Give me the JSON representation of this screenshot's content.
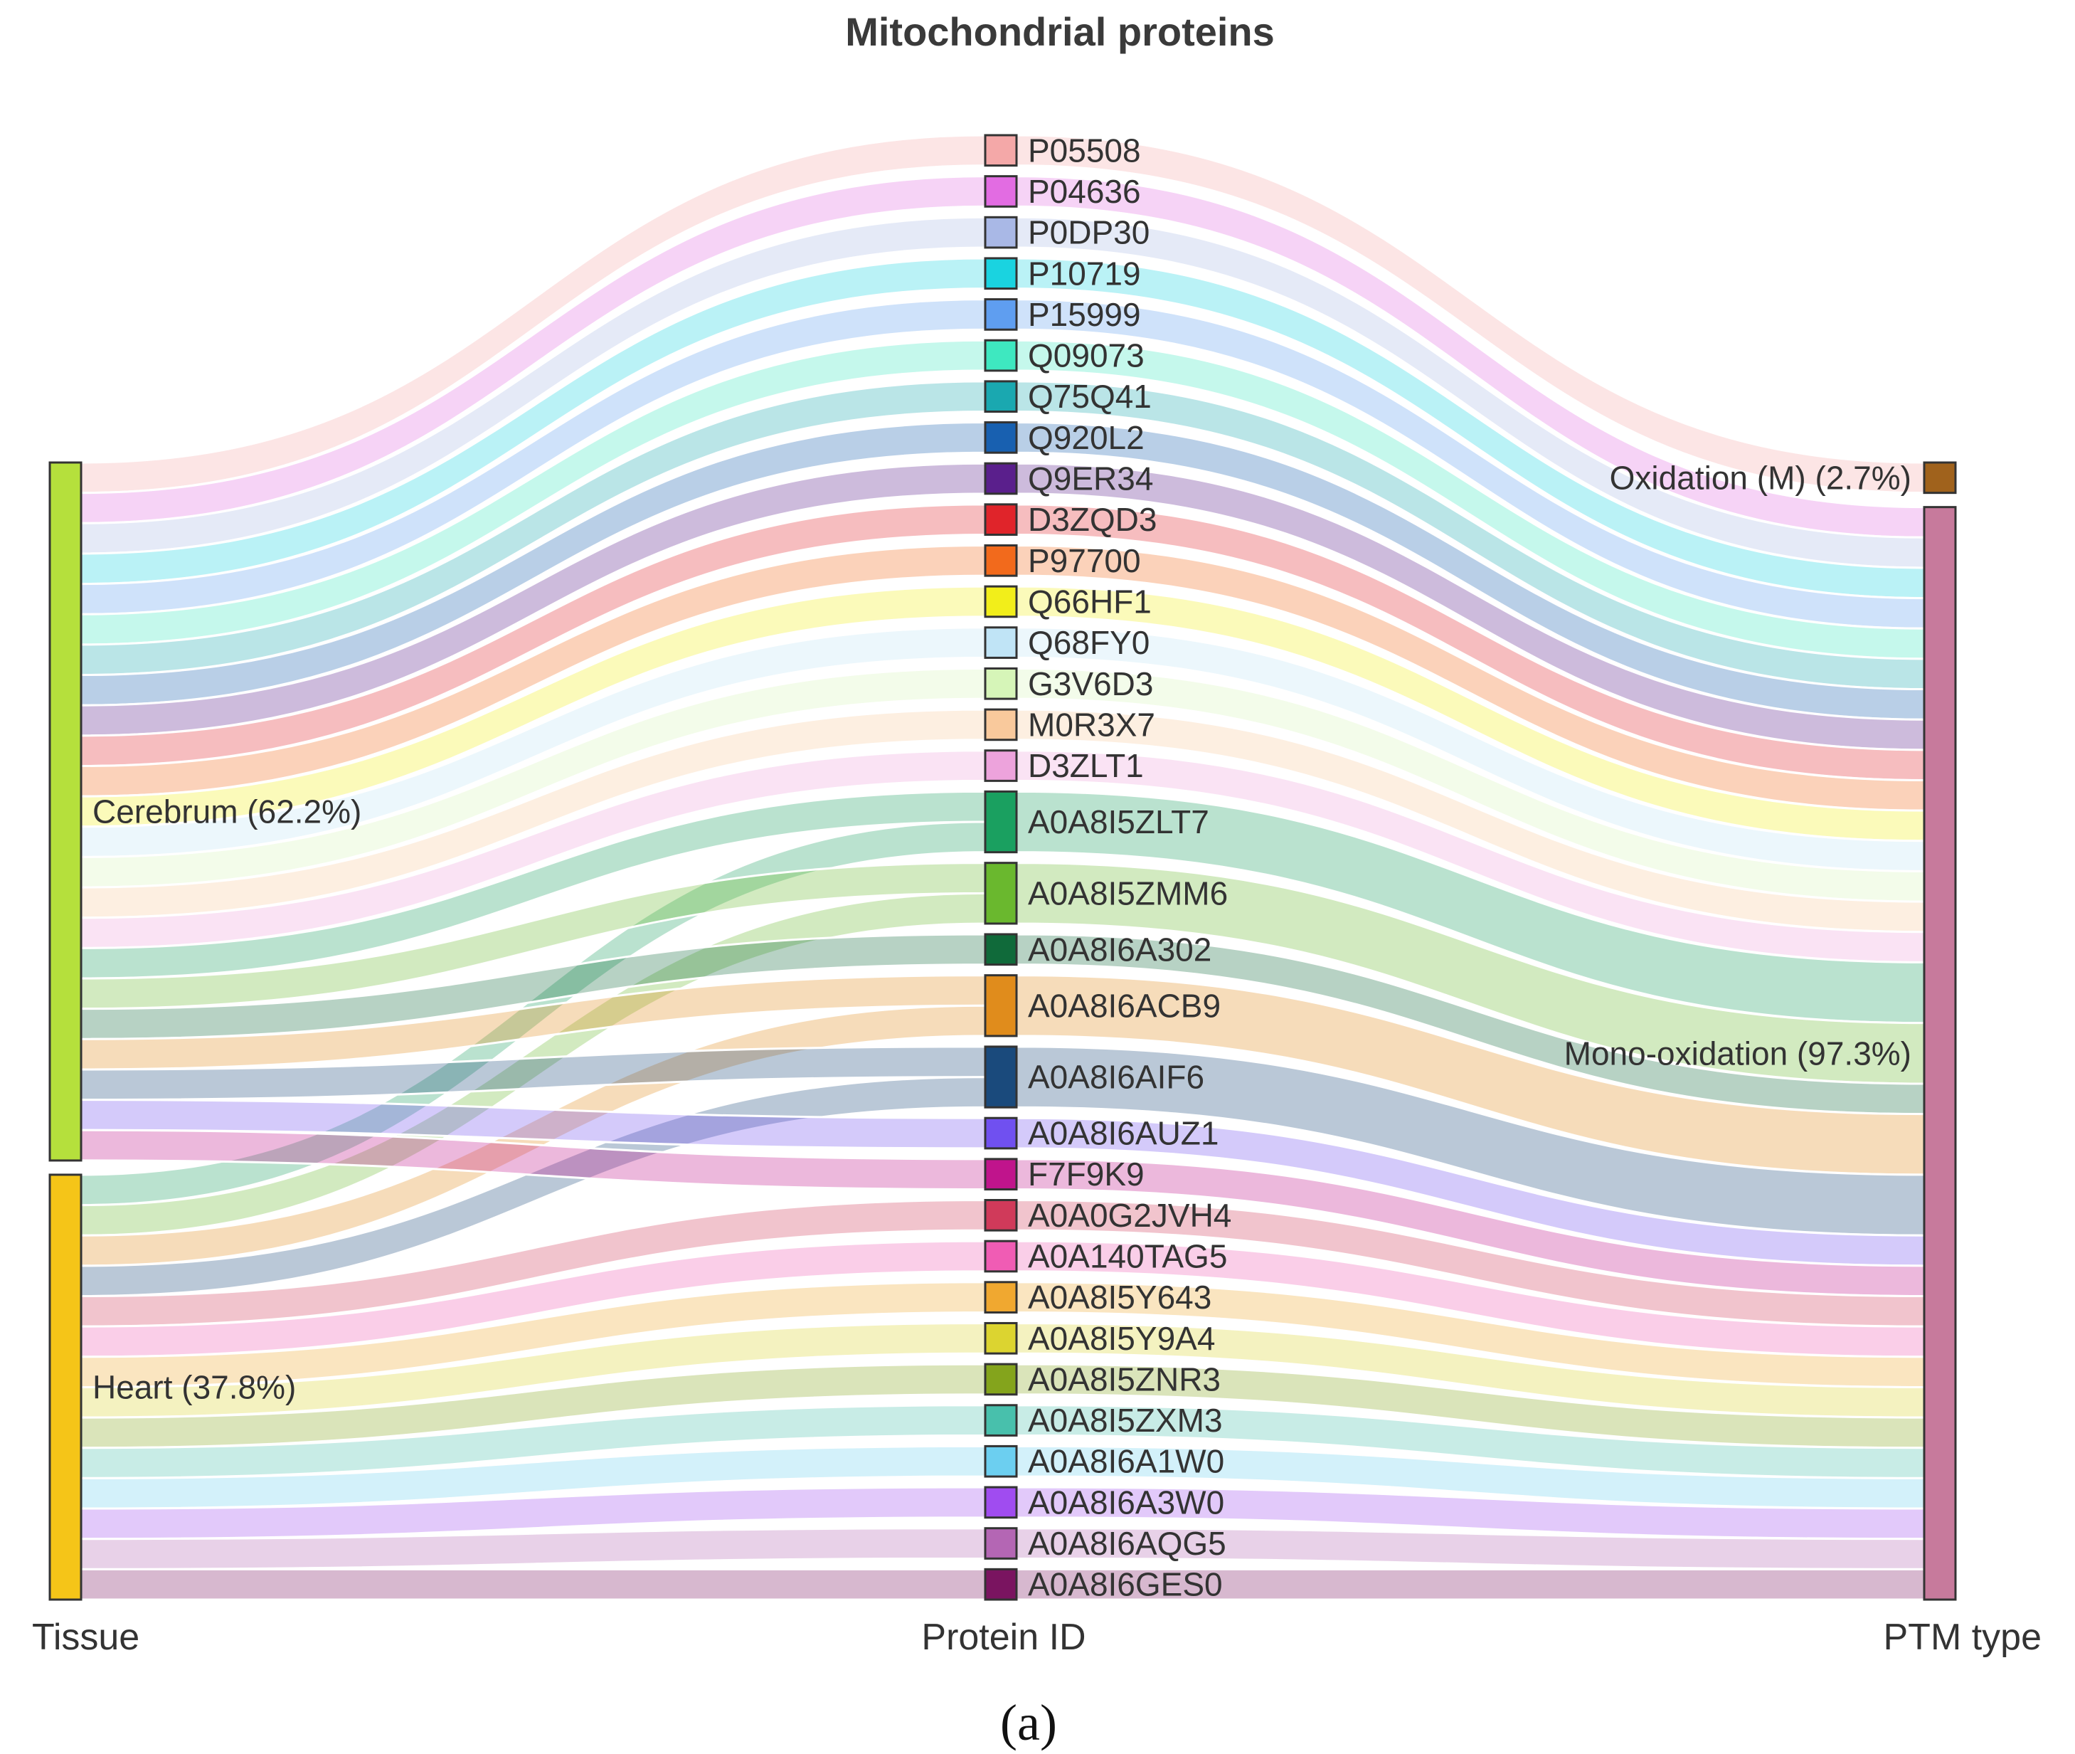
{
  "chart_data": {
    "type": "sankey",
    "title": "Mitochondrial proteins",
    "caption": "(a)",
    "columns": [
      "Tissue",
      "Protein ID",
      "PTM type"
    ],
    "tissues": [
      {
        "label": "Cerebrum (62.2%)",
        "name": "Cerebrum",
        "percent": 62.2,
        "color": "#b5e03c"
      },
      {
        "label": "Heart (37.8%)",
        "name": "Heart",
        "percent": 37.8,
        "color": "#f5c518"
      }
    ],
    "ptm_types": [
      {
        "label": "Oxidation (M) (2.7%)",
        "name": "Oxidation (M)",
        "percent": 2.7,
        "color": "#a0621c"
      },
      {
        "label": "Mono-oxidation (97.3%)",
        "name": "Mono-oxidation",
        "percent": 97.3,
        "color": "#c77a9c"
      }
    ],
    "proteins": [
      {
        "id": "P05508",
        "value": 1,
        "color": "#f4a8a8",
        "tissues": {
          "Cerebrum": 1
        },
        "ptm": {
          "Oxidation (M)": 1
        }
      },
      {
        "id": "P04636",
        "value": 1,
        "color": "#e26ce2",
        "tissues": {
          "Cerebrum": 1
        },
        "ptm": {
          "Mono-oxidation": 1
        }
      },
      {
        "id": "P0DP30",
        "value": 1,
        "color": "#a9b8e6",
        "tissues": {
          "Cerebrum": 1
        },
        "ptm": {
          "Mono-oxidation": 1
        }
      },
      {
        "id": "P10719",
        "value": 1,
        "color": "#1ad3e0",
        "tissues": {
          "Cerebrum": 1
        },
        "ptm": {
          "Mono-oxidation": 1
        }
      },
      {
        "id": "P15999",
        "value": 1,
        "color": "#5f9ef0",
        "tissues": {
          "Cerebrum": 1
        },
        "ptm": {
          "Mono-oxidation": 1
        }
      },
      {
        "id": "Q09073",
        "value": 1,
        "color": "#3ee8c0",
        "tissues": {
          "Cerebrum": 1
        },
        "ptm": {
          "Mono-oxidation": 1
        }
      },
      {
        "id": "Q75Q41",
        "value": 1,
        "color": "#1aa8b0",
        "tissues": {
          "Cerebrum": 1
        },
        "ptm": {
          "Mono-oxidation": 1
        }
      },
      {
        "id": "Q920L2",
        "value": 1,
        "color": "#1860b0",
        "tissues": {
          "Cerebrum": 1
        },
        "ptm": {
          "Mono-oxidation": 1
        }
      },
      {
        "id": "Q9ER34",
        "value": 1,
        "color": "#5a1f8c",
        "tissues": {
          "Cerebrum": 1
        },
        "ptm": {
          "Mono-oxidation": 1
        }
      },
      {
        "id": "D3ZQD3",
        "value": 1,
        "color": "#e0242a",
        "tissues": {
          "Cerebrum": 1
        },
        "ptm": {
          "Mono-oxidation": 1
        }
      },
      {
        "id": "P97700",
        "value": 1,
        "color": "#f26a1c",
        "tissues": {
          "Cerebrum": 1
        },
        "ptm": {
          "Mono-oxidation": 1
        }
      },
      {
        "id": "Q66HF1",
        "value": 1,
        "color": "#f2ee1a",
        "tissues": {
          "Cerebrum": 1
        },
        "ptm": {
          "Mono-oxidation": 1
        }
      },
      {
        "id": "Q68FY0",
        "value": 1,
        "color": "#c0e4f6",
        "tissues": {
          "Cerebrum": 1
        },
        "ptm": {
          "Mono-oxidation": 1
        }
      },
      {
        "id": "G3V6D3",
        "value": 1,
        "color": "#d6f5b8",
        "tissues": {
          "Cerebrum": 1
        },
        "ptm": {
          "Mono-oxidation": 1
        }
      },
      {
        "id": "M0R3X7",
        "value": 1,
        "color": "#f9c99c",
        "tissues": {
          "Cerebrum": 1
        },
        "ptm": {
          "Mono-oxidation": 1
        }
      },
      {
        "id": "D3ZLT1",
        "value": 1,
        "color": "#eda3dc",
        "tissues": {
          "Cerebrum": 1
        },
        "ptm": {
          "Mono-oxidation": 1
        }
      },
      {
        "id": "A0A8I5ZLT7",
        "value": 2,
        "color": "#1aa060",
        "tissues": {
          "Cerebrum": 1,
          "Heart": 1
        },
        "ptm": {
          "Mono-oxidation": 2
        }
      },
      {
        "id": "A0A8I5ZMM6",
        "value": 2,
        "color": "#6ab82e",
        "tissues": {
          "Cerebrum": 1,
          "Heart": 1
        },
        "ptm": {
          "Mono-oxidation": 2
        }
      },
      {
        "id": "A0A8I6A302",
        "value": 1,
        "color": "#106a3a",
        "tissues": {
          "Cerebrum": 1
        },
        "ptm": {
          "Mono-oxidation": 1
        }
      },
      {
        "id": "A0A8I6ACB9",
        "value": 2,
        "color": "#e08c1c",
        "tissues": {
          "Cerebrum": 1,
          "Heart": 1
        },
        "ptm": {
          "Mono-oxidation": 2
        }
      },
      {
        "id": "A0A8I6AIF6",
        "value": 2,
        "color": "#1a4a7c",
        "tissues": {
          "Cerebrum": 1,
          "Heart": 1
        },
        "ptm": {
          "Mono-oxidation": 2
        }
      },
      {
        "id": "A0A8I6AUZ1",
        "value": 1,
        "color": "#7050f0",
        "tissues": {
          "Cerebrum": 1
        },
        "ptm": {
          "Mono-oxidation": 1
        }
      },
      {
        "id": "F7F9K9",
        "value": 1,
        "color": "#c0148c",
        "tissues": {
          "Cerebrum": 1
        },
        "ptm": {
          "Mono-oxidation": 1
        }
      },
      {
        "id": "A0A0G2JVH4",
        "value": 1,
        "color": "#d03a5a",
        "tissues": {
          "Heart": 1
        },
        "ptm": {
          "Mono-oxidation": 1
        }
      },
      {
        "id": "A0A140TAG5",
        "value": 1,
        "color": "#f05cb4",
        "tissues": {
          "Heart": 1
        },
        "ptm": {
          "Mono-oxidation": 1
        }
      },
      {
        "id": "A0A8I5Y643",
        "value": 1,
        "color": "#f0a830",
        "tissues": {
          "Heart": 1
        },
        "ptm": {
          "Mono-oxidation": 1
        }
      },
      {
        "id": "A0A8I5Y9A4",
        "value": 1,
        "color": "#dcd430",
        "tissues": {
          "Heart": 1
        },
        "ptm": {
          "Mono-oxidation": 1
        }
      },
      {
        "id": "A0A8I5ZNR3",
        "value": 1,
        "color": "#84a41c",
        "tissues": {
          "Heart": 1
        },
        "ptm": {
          "Mono-oxidation": 1
        }
      },
      {
        "id": "A0A8I5ZXM3",
        "value": 1,
        "color": "#48c0ac",
        "tissues": {
          "Heart": 1
        },
        "ptm": {
          "Mono-oxidation": 1
        }
      },
      {
        "id": "A0A8I6A1W0",
        "value": 1,
        "color": "#6ccff0",
        "tissues": {
          "Heart": 1
        },
        "ptm": {
          "Mono-oxidation": 1
        }
      },
      {
        "id": "A0A8I6A3W0",
        "value": 1,
        "color": "#a04cf0",
        "tissues": {
          "Heart": 1
        },
        "ptm": {
          "Mono-oxidation": 1
        }
      },
      {
        "id": "A0A8I6AQG5",
        "value": 1,
        "color": "#b466b4",
        "tissues": {
          "Heart": 1
        },
        "ptm": {
          "Mono-oxidation": 1
        }
      },
      {
        "id": "A0A8I6GES0",
        "value": 1,
        "color": "#7a1460",
        "tissues": {
          "Heart": 1
        },
        "ptm": {
          "Mono-oxidation": 1
        }
      }
    ]
  }
}
